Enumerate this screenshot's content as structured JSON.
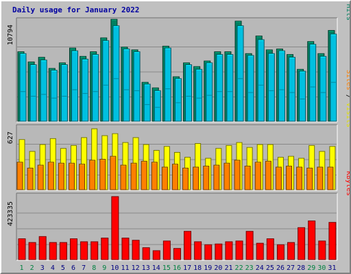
{
  "title": "Daily usage for January 2022",
  "colors": {
    "hits": "#008060",
    "files": "#00c0e0",
    "pages": "#00c0e0",
    "sites": "#ff8000",
    "visits": "#ffff00",
    "kbytes": "#ff0000",
    "weekend_label": "#008040",
    "weekday_label": "#000080",
    "separator": "#000000"
  },
  "panel_labels": {
    "top": [
      {
        "text": "Pages",
        "color": "#00c0e0"
      },
      {
        "text": " / ",
        "color": "#000000"
      },
      {
        "text": "Files",
        "color": "#0000c0"
      },
      {
        "text": " / ",
        "color": "#000000"
      },
      {
        "text": "Hits",
        "color": "#008060"
      }
    ],
    "middle": [
      {
        "text": "Sites",
        "color": "#ff8000"
      },
      {
        "text": " / ",
        "color": "#000000"
      },
      {
        "text": "Visits",
        "color": "#e0e000"
      }
    ],
    "bottom": [
      {
        "text": "KBytes",
        "color": "#ff0000"
      }
    ]
  },
  "chart_data": [
    {
      "type": "bar",
      "title": "Daily usage for January 2022",
      "ylabel": "10794",
      "ylim": [
        0,
        10794
      ],
      "categories": [
        "1",
        "2",
        "3",
        "4",
        "5",
        "6",
        "7",
        "8",
        "9",
        "10",
        "11",
        "12",
        "13",
        "14",
        "15",
        "16",
        "17",
        "18",
        "19",
        "20",
        "21",
        "22",
        "23",
        "24",
        "25",
        "26",
        "27",
        "28",
        "29",
        "30",
        "31"
      ],
      "series": [
        {
          "name": "Hits",
          "values": [
            7500,
            6400,
            6900,
            5700,
            6300,
            7900,
            7000,
            7500,
            9000,
            11000,
            8000,
            7700,
            4200,
            3600,
            8100,
            4800,
            6300,
            5900,
            6500,
            7500,
            7500,
            10800,
            7300,
            9200,
            7700,
            7800,
            7200,
            5600,
            8600,
            7300,
            9800
          ]
        },
        {
          "name": "Files",
          "values": [
            7300,
            6100,
            6600,
            5500,
            6100,
            7600,
            6700,
            7200,
            8700,
            10300,
            7800,
            7500,
            4000,
            3300,
            7900,
            4600,
            6100,
            5600,
            6300,
            7200,
            7200,
            10300,
            7100,
            8800,
            7300,
            7600,
            6900,
            5400,
            8300,
            7000,
            9400
          ]
        },
        {
          "name": "Pages",
          "values": [
            3200,
            2700,
            2900,
            2500,
            2700,
            3400,
            3000,
            3200,
            3900,
            4600,
            3400,
            3300,
            1800,
            1500,
            3500,
            2000,
            2700,
            2500,
            2800,
            3200,
            3200,
            4600,
            3100,
            3900,
            3300,
            3400,
            3100,
            2400,
            3700,
            3100,
            4200
          ]
        }
      ]
    },
    {
      "type": "bar",
      "ylabel": "627",
      "ylim": [
        0,
        627
      ],
      "categories": [
        "1",
        "2",
        "3",
        "4",
        "5",
        "6",
        "7",
        "8",
        "9",
        "10",
        "11",
        "12",
        "13",
        "14",
        "15",
        "16",
        "17",
        "18",
        "19",
        "20",
        "21",
        "22",
        "23",
        "24",
        "25",
        "26",
        "27",
        "28",
        "29",
        "30",
        "31"
      ],
      "series": [
        {
          "name": "Visits",
          "values": [
            510,
            390,
            460,
            520,
            420,
            450,
            530,
            620,
            550,
            570,
            480,
            530,
            460,
            400,
            440,
            380,
            330,
            470,
            320,
            420,
            450,
            480,
            430,
            460,
            460,
            330,
            340,
            320,
            450,
            390,
            440
          ]
        },
        {
          "name": "Sites",
          "values": [
            280,
            220,
            250,
            280,
            270,
            270,
            260,
            300,
            310,
            340,
            250,
            270,
            290,
            280,
            230,
            260,
            220,
            230,
            240,
            250,
            270,
            300,
            240,
            280,
            290,
            230,
            240,
            230,
            220,
            230,
            230
          ]
        }
      ]
    },
    {
      "type": "bar",
      "ylabel": "423335",
      "ylim": [
        0,
        423335
      ],
      "categories": [
        "1",
        "2",
        "3",
        "4",
        "5",
        "6",
        "7",
        "8",
        "9",
        "10",
        "11",
        "12",
        "13",
        "14",
        "15",
        "16",
        "17",
        "18",
        "19",
        "20",
        "21",
        "22",
        "23",
        "24",
        "25",
        "26",
        "27",
        "28",
        "29",
        "30",
        "31"
      ],
      "series": [
        {
          "name": "KBytes",
          "values": [
            140000,
            115000,
            155000,
            115000,
            115000,
            140000,
            120000,
            120000,
            145000,
            423335,
            145000,
            130000,
            80000,
            60000,
            125000,
            75000,
            190000,
            120000,
            100000,
            105000,
            120000,
            125000,
            190000,
            110000,
            140000,
            100000,
            115000,
            215000,
            260000,
            125000,
            250000
          ]
        }
      ]
    }
  ]
}
